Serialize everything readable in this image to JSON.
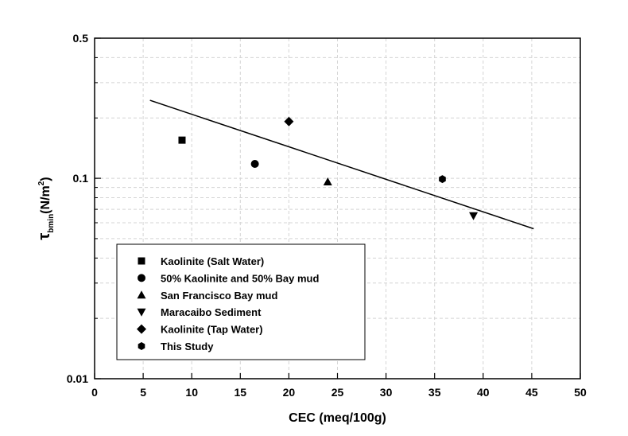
{
  "chart_data": {
    "type": "scatter",
    "title": "",
    "xlabel": "CEC (meq/100g)",
    "ylabel": {
      "symbol": "τ",
      "subscript": "bmin",
      "unit_prefix": "(N/m",
      "unit_sup": "2",
      "unit_suffix": ")"
    },
    "xlim": [
      0,
      50
    ],
    "ylim": [
      0.01,
      0.5
    ],
    "y_scale": "log",
    "grid": true,
    "x_ticks": [
      "0",
      "5",
      "10",
      "15",
      "20",
      "25",
      "30",
      "35",
      "40",
      "45",
      "50"
    ],
    "y_ticks": [
      {
        "value": 0.01,
        "label": "0.01"
      },
      {
        "value": 0.1,
        "label": "0.1"
      },
      {
        "value": 0.5,
        "label": "0.5"
      }
    ],
    "legend_position": "bottom-left",
    "series": [
      {
        "name": "Kaolinite (Salt Water)",
        "marker": "square",
        "points": [
          {
            "x": 9,
            "y": 0.155
          }
        ]
      },
      {
        "name": "50% Kaolinite and 50% Bay mud",
        "marker": "circle",
        "points": [
          {
            "x": 16.5,
            "y": 0.118
          }
        ]
      },
      {
        "name": "San Francisco Bay mud",
        "marker": "triangle-up",
        "points": [
          {
            "x": 24,
            "y": 0.096
          }
        ]
      },
      {
        "name": "Maracaibo Sediment",
        "marker": "triangle-down",
        "points": [
          {
            "x": 39,
            "y": 0.065
          }
        ]
      },
      {
        "name": "Kaolinite (Tap Water)",
        "marker": "diamond",
        "points": [
          {
            "x": 20,
            "y": 0.192
          }
        ]
      },
      {
        "name": "This Study",
        "marker": "hexagon",
        "points": [
          {
            "x": 35.8,
            "y": 0.099
          }
        ]
      }
    ],
    "fit_line": {
      "x": [
        5.7,
        45.2
      ],
      "y": [
        0.245,
        0.056
      ]
    }
  }
}
